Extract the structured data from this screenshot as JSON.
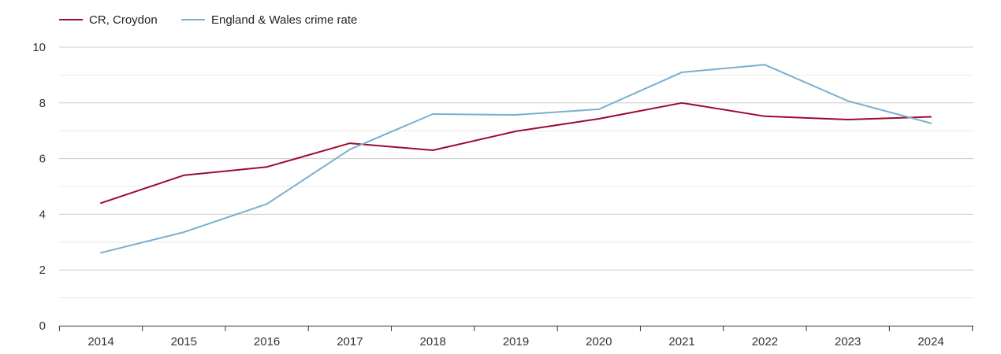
{
  "chart_data": {
    "type": "line",
    "title": "",
    "xlabel": "",
    "ylabel": "",
    "x": [
      2014,
      2015,
      2016,
      2017,
      2018,
      2019,
      2020,
      2021,
      2022,
      2023,
      2024
    ],
    "ylim": [
      0,
      10
    ],
    "yticks": [
      0,
      2,
      4,
      6,
      8,
      10
    ],
    "grid": true,
    "legend_position": "top-left",
    "series": [
      {
        "name": "CR, Croydon",
        "color": "#9b0a32",
        "values": [
          4.4,
          5.4,
          5.7,
          6.55,
          6.3,
          6.98,
          7.43,
          8.0,
          7.52,
          7.4,
          7.5
        ]
      },
      {
        "name": "England & Wales crime rate",
        "color": "#7aaed0",
        "values": [
          2.62,
          3.36,
          4.37,
          6.33,
          7.6,
          7.57,
          7.77,
          9.1,
          9.37,
          8.07,
          7.27
        ]
      }
    ]
  }
}
